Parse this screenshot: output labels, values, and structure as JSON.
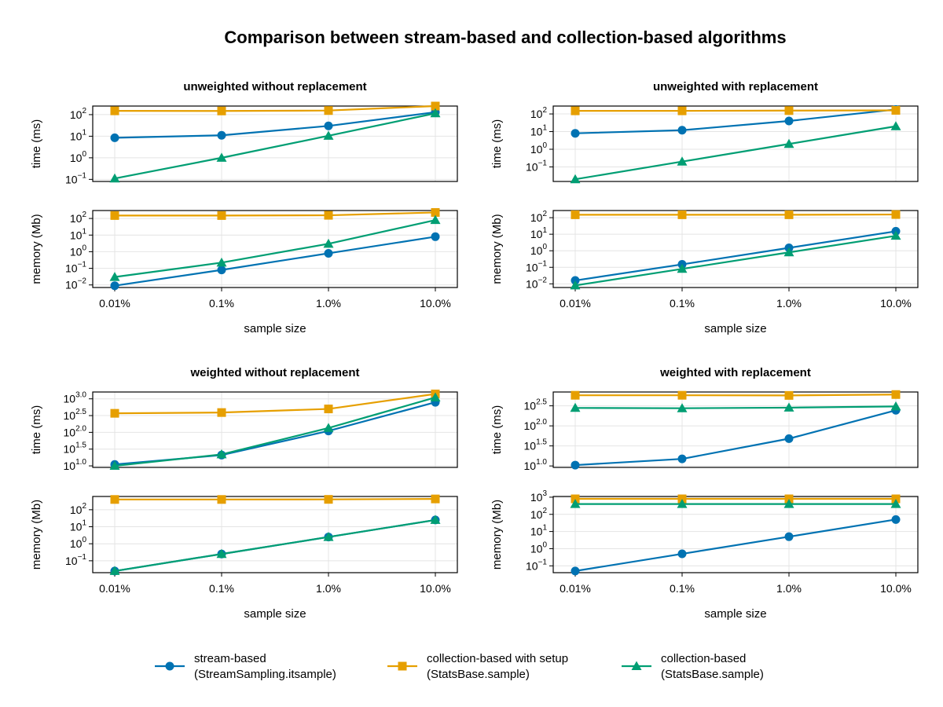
{
  "title": "Comparison between stream-based and collection-based algorithms",
  "colors": {
    "stream": "#0072B2",
    "setup": "#E69F00",
    "collection": "#009E73"
  },
  "legend": {
    "position": "bottom-center",
    "items": [
      {
        "key": "stream",
        "line1": "stream-based",
        "line2": "(StreamSampling.itsample)",
        "marker": "circle"
      },
      {
        "key": "setup",
        "line1": "collection-based with setup",
        "line2": "(StatsBase.sample)",
        "marker": "square"
      },
      {
        "key": "collection",
        "line1": "collection-based",
        "line2": "(StatsBase.sample)",
        "marker": "triangle"
      }
    ]
  },
  "chart_data": [
    {
      "type": "line",
      "yscale": "log10",
      "title": "unweighted without replacement",
      "categories": [
        "0.01%",
        "0.1%",
        "1.0%",
        "10.0%"
      ],
      "xlabel": "",
      "ylabel": "time (ms)",
      "ylim": [
        0.08,
        250
      ],
      "yticks": [
        {
          "base": "10",
          "exp": "−1",
          "value": 0.1
        },
        {
          "base": "10",
          "exp": "0",
          "value": 1
        },
        {
          "base": "10",
          "exp": "1",
          "value": 10
        },
        {
          "base": "10",
          "exp": "2",
          "value": 100
        }
      ],
      "series": [
        {
          "key": "stream",
          "values": [
            8.5,
            11,
            30,
            130
          ]
        },
        {
          "key": "setup",
          "values": [
            150,
            148,
            155,
            250
          ]
        },
        {
          "key": "collection",
          "values": [
            0.11,
            1.0,
            10.5,
            115
          ]
        }
      ]
    },
    {
      "type": "line",
      "yscale": "log10",
      "title": "unweighted with replacement",
      "categories": [
        "0.01%",
        "0.1%",
        "1.0%",
        "10.0%"
      ],
      "xlabel": "",
      "ylabel": "time (ms)",
      "ylim": [
        0.015,
        280
      ],
      "yticks": [
        {
          "base": "10",
          "exp": "−1",
          "value": 0.1
        },
        {
          "base": "10",
          "exp": "0",
          "value": 1
        },
        {
          "base": "10",
          "exp": "1",
          "value": 10
        },
        {
          "base": "10",
          "exp": "2",
          "value": 100
        }
      ],
      "series": [
        {
          "key": "stream",
          "values": [
            8,
            12,
            40,
            180
          ]
        },
        {
          "key": "setup",
          "values": [
            150,
            150,
            155,
            160
          ]
        },
        {
          "key": "collection",
          "values": [
            0.02,
            0.2,
            2.0,
            20
          ]
        }
      ]
    },
    {
      "type": "line",
      "yscale": "log10",
      "title": "",
      "categories": [
        "0.01%",
        "0.1%",
        "1.0%",
        "10.0%"
      ],
      "xlabel": "sample size",
      "ylabel": "memory (Mb)",
      "ylim": [
        0.007,
        300
      ],
      "yticks": [
        {
          "base": "10",
          "exp": "−2",
          "value": 0.01
        },
        {
          "base": "10",
          "exp": "−1",
          "value": 0.1
        },
        {
          "base": "10",
          "exp": "0",
          "value": 1
        },
        {
          "base": "10",
          "exp": "1",
          "value": 10
        },
        {
          "base": "10",
          "exp": "2",
          "value": 100
        }
      ],
      "series": [
        {
          "key": "stream",
          "values": [
            0.009,
            0.08,
            0.8,
            8
          ]
        },
        {
          "key": "setup",
          "values": [
            150,
            150,
            155,
            230
          ]
        },
        {
          "key": "collection",
          "values": [
            0.03,
            0.22,
            3.0,
            80
          ]
        }
      ]
    },
    {
      "type": "line",
      "yscale": "log10",
      "title": "",
      "categories": [
        "0.01%",
        "0.1%",
        "1.0%",
        "10.0%"
      ],
      "xlabel": "sample size",
      "ylabel": "memory (Mb)",
      "ylim": [
        0.006,
        270
      ],
      "yticks": [
        {
          "base": "10",
          "exp": "−2",
          "value": 0.01
        },
        {
          "base": "10",
          "exp": "−1",
          "value": 0.1
        },
        {
          "base": "10",
          "exp": "0",
          "value": 1
        },
        {
          "base": "10",
          "exp": "1",
          "value": 10
        },
        {
          "base": "10",
          "exp": "2",
          "value": 100
        }
      ],
      "series": [
        {
          "key": "stream",
          "values": [
            0.016,
            0.15,
            1.5,
            15
          ]
        },
        {
          "key": "setup",
          "values": [
            150,
            150,
            150,
            155
          ]
        },
        {
          "key": "collection",
          "values": [
            0.008,
            0.08,
            0.8,
            8
          ]
        }
      ]
    },
    {
      "type": "line",
      "yscale": "log10",
      "title": "weighted without replacement",
      "categories": [
        "0.01%",
        "0.1%",
        "1.0%",
        "10.0%"
      ],
      "xlabel": "",
      "ylabel": "time (ms)",
      "ylim": [
        9,
        1600
      ],
      "yticks": [
        {
          "base": "10",
          "exp": "1.0",
          "value": 10
        },
        {
          "base": "10",
          "exp": "1.5",
          "value": 31.62
        },
        {
          "base": "10",
          "exp": "2.0",
          "value": 100
        },
        {
          "base": "10",
          "exp": "2.5",
          "value": 316.2
        },
        {
          "base": "10",
          "exp": "3.0",
          "value": 1000
        }
      ],
      "series": [
        {
          "key": "stream",
          "values": [
            11,
            21,
            110,
            790
          ]
        },
        {
          "key": "setup",
          "values": [
            370,
            390,
            500,
            1400
          ]
        },
        {
          "key": "collection",
          "values": [
            10,
            22,
            135,
            1100
          ]
        }
      ]
    },
    {
      "type": "line",
      "yscale": "log10",
      "title": "weighted with replacement",
      "categories": [
        "0.01%",
        "0.1%",
        "1.0%",
        "10.0%"
      ],
      "xlabel": "",
      "ylabel": "time (ms)",
      "ylim": [
        9.2,
        700
      ],
      "yticks": [
        {
          "base": "10",
          "exp": "1.0",
          "value": 10
        },
        {
          "base": "10",
          "exp": "1.5",
          "value": 31.62
        },
        {
          "base": "10",
          "exp": "2.0",
          "value": 100
        },
        {
          "base": "10",
          "exp": "2.5",
          "value": 316.2
        }
      ],
      "series": [
        {
          "key": "stream",
          "values": [
            10.5,
            15,
            48,
            245
          ]
        },
        {
          "key": "setup",
          "values": [
            580,
            580,
            575,
            605
          ]
        },
        {
          "key": "collection",
          "values": [
            280,
            275,
            285,
            305
          ]
        }
      ]
    },
    {
      "type": "line",
      "yscale": "log10",
      "title": "",
      "categories": [
        "0.01%",
        "0.1%",
        "1.0%",
        "10.0%"
      ],
      "xlabel": "sample size",
      "ylabel": "memory (Mb)",
      "ylim": [
        0.02,
        600
      ],
      "yticks": [
        {
          "base": "10",
          "exp": "−1",
          "value": 0.1
        },
        {
          "base": "10",
          "exp": "0",
          "value": 1
        },
        {
          "base": "10",
          "exp": "1",
          "value": 10
        },
        {
          "base": "10",
          "exp": "2",
          "value": 100
        }
      ],
      "series": [
        {
          "key": "stream",
          "values": [
            0.025,
            0.25,
            2.5,
            25
          ]
        },
        {
          "key": "setup",
          "values": [
            400,
            400,
            405,
            430
          ]
        },
        {
          "key": "collection",
          "values": [
            0.025,
            0.25,
            2.5,
            25
          ]
        }
      ]
    },
    {
      "type": "line",
      "yscale": "log10",
      "title": "",
      "categories": [
        "0.01%",
        "0.1%",
        "1.0%",
        "10.0%"
      ],
      "xlabel": "sample size",
      "ylabel": "memory (Mb)",
      "ylim": [
        0.04,
        1100
      ],
      "yticks": [
        {
          "base": "10",
          "exp": "−1",
          "value": 0.1
        },
        {
          "base": "10",
          "exp": "0",
          "value": 1
        },
        {
          "base": "10",
          "exp": "1",
          "value": 10
        },
        {
          "base": "10",
          "exp": "2",
          "value": 100
        },
        {
          "base": "10",
          "exp": "3",
          "value": 1000
        }
      ],
      "series": [
        {
          "key": "stream",
          "values": [
            0.05,
            0.5,
            5,
            50
          ]
        },
        {
          "key": "setup",
          "values": [
            800,
            800,
            800,
            800
          ]
        },
        {
          "key": "collection",
          "values": [
            400,
            400,
            400,
            400
          ]
        }
      ]
    }
  ]
}
